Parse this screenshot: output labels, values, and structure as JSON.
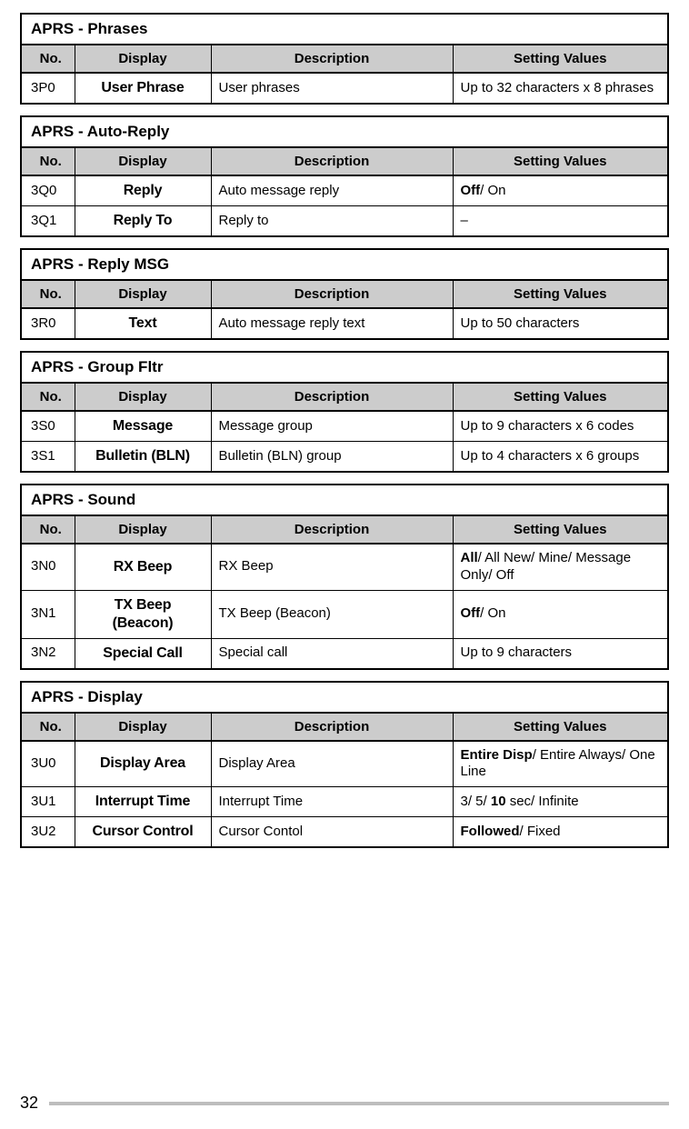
{
  "colors": {
    "border": "#000000",
    "headerBg": "#cccccc",
    "footerLine": "#bdbdbd",
    "text": "#000000",
    "background": "#ffffff"
  },
  "layout": {
    "colNoWidth": 58,
    "colDisplayWidth": 150,
    "colSetWidth": 236,
    "titleFontSize": 17,
    "headerFontSize": 15,
    "cellFontSize": 15
  },
  "columns": {
    "no": "No.",
    "display": "Display",
    "description": "Description",
    "setting": "Setting Values"
  },
  "pageNumber": "32",
  "sections": [
    {
      "title": "APRS - Phrases",
      "rows": [
        {
          "no": "3P0",
          "display": "User Phrase",
          "description": "User phrases",
          "setting": [
            {
              "t": "Up to 32 characters x 8 phrases",
              "b": false
            }
          ]
        }
      ]
    },
    {
      "title": "APRS - Auto-Reply",
      "rows": [
        {
          "no": "3Q0",
          "display": "Reply",
          "description": "Auto message reply",
          "setting": [
            {
              "t": "Off",
              "b": true
            },
            {
              "t": "/ On",
              "b": false
            }
          ]
        },
        {
          "no": "3Q1",
          "display": "Reply To",
          "description": "Reply to",
          "setting": [
            {
              "t": "–",
              "b": false
            }
          ]
        }
      ]
    },
    {
      "title": "APRS - Reply MSG",
      "rows": [
        {
          "no": "3R0",
          "display": "Text",
          "description": "Auto message reply text",
          "setting": [
            {
              "t": "Up to 50 characters",
              "b": false
            }
          ]
        }
      ]
    },
    {
      "title": "APRS - Group Fltr",
      "rows": [
        {
          "no": "3S0",
          "display": "Message",
          "description": "Message group",
          "setting": [
            {
              "t": "Up to 9 characters x 6 codes",
              "b": false
            }
          ]
        },
        {
          "no": "3S1",
          "display": "Bulletin (BLN)",
          "description": "Bulletin (BLN) group",
          "setting": [
            {
              "t": "Up to 4 characters x 6 groups",
              "b": false
            }
          ]
        }
      ]
    },
    {
      "title": "APRS - Sound",
      "rows": [
        {
          "no": "3N0",
          "display": "RX Beep",
          "description": "RX Beep",
          "setting": [
            {
              "t": "All",
              "b": true
            },
            {
              "t": "/ All New/ Mine/ Message Only/ Off",
              "b": false
            }
          ]
        },
        {
          "no": "3N1",
          "display": "TX Beep (Beacon)",
          "description": "TX Beep (Beacon)",
          "setting": [
            {
              "t": "Off",
              "b": true
            },
            {
              "t": "/ On",
              "b": false
            }
          ]
        },
        {
          "no": "3N2",
          "display": "Special Call",
          "description": "Special call",
          "setting": [
            {
              "t": "Up to 9 characters",
              "b": false
            }
          ]
        }
      ]
    },
    {
      "title": "APRS - Display",
      "rows": [
        {
          "no": "3U0",
          "display": "Display Area",
          "description": "Display Area",
          "setting": [
            {
              "t": "Entire Disp",
              "b": true
            },
            {
              "t": "/ Entire Always/ One Line",
              "b": false
            }
          ]
        },
        {
          "no": "3U1",
          "display": "Interrupt Time",
          "description": "Interrupt Time",
          "setting": [
            {
              "t": "3/ 5/ ",
              "b": false
            },
            {
              "t": "10",
              "b": true
            },
            {
              "t": " sec/ Infinite",
              "b": false
            }
          ]
        },
        {
          "no": "3U2",
          "display": "Cursor Control",
          "description": "Cursor Contol",
          "setting": [
            {
              "t": "Followed",
              "b": true
            },
            {
              "t": "/ Fixed",
              "b": false
            }
          ]
        }
      ]
    }
  ]
}
